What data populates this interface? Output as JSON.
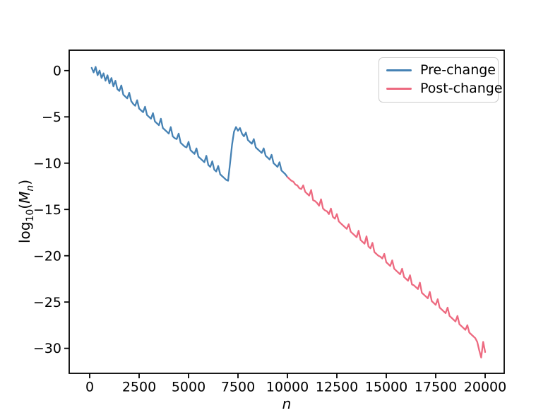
{
  "figure": {
    "background": "#ffffff",
    "text_color": "#000000",
    "spine_color": "#000000"
  },
  "chart_data": {
    "type": "line",
    "title": "",
    "xlabel": "n",
    "ylabel": "log10(Mn)",
    "ylabel_parts": {
      "func": "log",
      "funcsub": "10",
      "open": "(",
      "var": "M",
      "varsub": "n",
      "close": ")"
    },
    "xlim": [
      -1036,
      20964
    ],
    "ylim": [
      -32.7,
      2.2
    ],
    "xticks": [
      0,
      2500,
      5000,
      7500,
      10000,
      12500,
      15000,
      17500,
      20000
    ],
    "xtick_labels": [
      "0",
      "2500",
      "5000",
      "7500",
      "10000",
      "12500",
      "15000",
      "17500",
      "20000"
    ],
    "yticks": [
      0,
      -5,
      -10,
      -15,
      -20,
      -25,
      -30
    ],
    "ytick_labels": [
      "0",
      "−5",
      "−10",
      "−15",
      "−20",
      "−25",
      "−30"
    ],
    "grid": false,
    "legend_position": "upper right",
    "series": [
      {
        "name": "Pre-change",
        "color": "#4682b4",
        "x_start": 100,
        "x_step": 100,
        "values": [
          0.3,
          -0.2,
          0.4,
          -0.5,
          0.0,
          -0.8,
          -0.3,
          -1.1,
          -0.5,
          -1.4,
          -0.8,
          -1.7,
          -1.1,
          -2.0,
          -2.2,
          -1.6,
          -2.6,
          -2.8,
          -3.0,
          -2.4,
          -3.3,
          -3.6,
          -3.8,
          -3.2,
          -4.1,
          -4.3,
          -4.5,
          -3.9,
          -4.8,
          -5.0,
          -5.2,
          -4.6,
          -5.5,
          -5.7,
          -5.9,
          -5.2,
          -6.2,
          -6.4,
          -6.6,
          -6.8,
          -6.1,
          -7.1,
          -7.3,
          -7.4,
          -6.8,
          -7.8,
          -8.0,
          -8.2,
          -8.3,
          -7.7,
          -8.6,
          -8.8,
          -9.0,
          -8.4,
          -9.3,
          -9.5,
          -9.7,
          -9.9,
          -9.2,
          -10.2,
          -10.4,
          -9.8,
          -10.7,
          -10.9,
          -10.3,
          -11.2,
          -11.4,
          -11.6,
          -11.8,
          -11.9,
          -10.0,
          -8.0,
          -6.6,
          -6.1,
          -6.5,
          -6.2,
          -6.8,
          -7.1,
          -6.7,
          -7.5,
          -7.7,
          -7.9,
          -7.4,
          -8.3,
          -8.5,
          -8.7,
          -8.9,
          -8.4,
          -9.2,
          -9.4,
          -9.6,
          -9.1,
          -10.0,
          -10.2,
          -10.4,
          -9.9,
          -10.8,
          -11.0,
          -11.2,
          -11.5
        ]
      },
      {
        "name": "Post-change",
        "color": "#ed6a80",
        "x_start": 10000,
        "x_step": 100,
        "values": [
          -11.5,
          -11.7,
          -11.9,
          -12.0,
          -12.3,
          -12.4,
          -12.7,
          -12.8,
          -12.4,
          -13.1,
          -13.3,
          -13.5,
          -12.9,
          -14.0,
          -14.1,
          -14.3,
          -14.6,
          -13.9,
          -14.9,
          -15.1,
          -15.2,
          -15.5,
          -14.9,
          -15.8,
          -16.0,
          -15.5,
          -16.3,
          -16.5,
          -16.7,
          -16.9,
          -17.1,
          -16.6,
          -17.4,
          -17.6,
          -17.8,
          -18.0,
          -17.3,
          -18.3,
          -18.5,
          -18.7,
          -17.9,
          -19.0,
          -19.2,
          -18.6,
          -19.6,
          -19.8,
          -20.0,
          -20.1,
          -20.3,
          -19.8,
          -20.7,
          -20.9,
          -21.1,
          -20.5,
          -21.4,
          -21.6,
          -21.8,
          -22.0,
          -21.4,
          -22.3,
          -22.5,
          -22.7,
          -22.1,
          -23.1,
          -23.2,
          -23.4,
          -23.6,
          -22.9,
          -24.0,
          -24.2,
          -24.4,
          -24.6,
          -23.9,
          -24.9,
          -25.1,
          -25.3,
          -24.7,
          -25.6,
          -25.8,
          -26.0,
          -26.2,
          -25.6,
          -26.5,
          -26.7,
          -26.9,
          -27.1,
          -26.5,
          -27.4,
          -27.6,
          -27.8,
          -28.0,
          -27.5,
          -28.3,
          -28.5,
          -28.7,
          -28.9,
          -29.3,
          -30.2,
          -31.0,
          -29.3,
          -30.4
        ]
      }
    ]
  },
  "legend": {
    "entries": [
      "Pre-change",
      "Post-change"
    ]
  }
}
